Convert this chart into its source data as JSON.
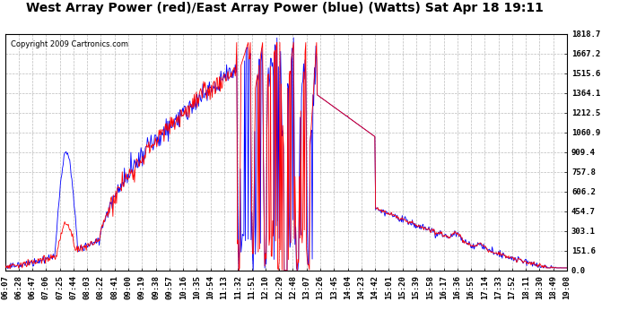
{
  "title": "West Array Power (red)/East Array Power (blue) (Watts) Sat Apr 18 19:11",
  "copyright": "Copyright 2009 Cartronics.com",
  "background_color": "#ffffff",
  "plot_bg_color": "#ffffff",
  "yticks": [
    0.0,
    151.6,
    303.1,
    454.7,
    606.2,
    757.8,
    909.4,
    1060.9,
    1212.5,
    1364.1,
    1515.6,
    1667.2,
    1818.7
  ],
  "ymin": 0.0,
  "ymax": 1818.7,
  "red_color": "#ff0000",
  "blue_color": "#0000ff",
  "grid_color": "#bbbbbb",
  "title_fontsize": 10,
  "copyright_fontsize": 6,
  "tick_fontsize": 6.5,
  "xtick_labels": [
    "06:07",
    "06:28",
    "06:47",
    "07:06",
    "07:25",
    "07:44",
    "08:03",
    "08:22",
    "08:41",
    "09:00",
    "09:19",
    "09:38",
    "09:57",
    "10:16",
    "10:35",
    "10:54",
    "11:13",
    "11:32",
    "11:51",
    "12:10",
    "12:29",
    "12:48",
    "13:07",
    "13:26",
    "13:45",
    "14:04",
    "14:23",
    "14:42",
    "15:01",
    "15:20",
    "15:39",
    "15:58",
    "16:17",
    "16:36",
    "16:55",
    "17:14",
    "17:33",
    "17:52",
    "18:11",
    "18:30",
    "18:49",
    "19:08"
  ]
}
